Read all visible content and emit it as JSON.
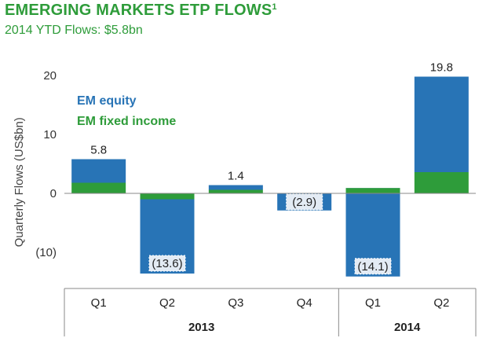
{
  "header": {
    "title": "EMERGING MARKETS ETP FLOWS",
    "title_footnote": "1",
    "subtitle": "2014 YTD Flows: $5.8bn"
  },
  "colors": {
    "em_equity": "#2874b6",
    "em_fixed_income": "#2e9c3a",
    "label_box": "#e3ebf4",
    "title": "#2e9c3a",
    "axis": "#888888"
  },
  "chart_data": {
    "type": "bar",
    "stacked": true,
    "categories": [
      "Q1",
      "Q2",
      "Q3",
      "Q4",
      "Q1",
      "Q2"
    ],
    "year_groups": [
      {
        "label": "2013",
        "categories": [
          0,
          1,
          2,
          3
        ]
      },
      {
        "label": "2014",
        "categories": [
          4,
          5
        ]
      }
    ],
    "series": [
      {
        "name": "EM equity",
        "values": [
          4.0,
          -12.6,
          0.8,
          -2.9,
          -15.0,
          16.2
        ]
      },
      {
        "name": "EM fixed income",
        "values": [
          1.8,
          -1.0,
          0.6,
          0.0,
          0.9,
          3.6
        ]
      }
    ],
    "totals": [
      5.8,
      -13.6,
      1.4,
      -2.9,
      -14.1,
      19.8
    ],
    "total_labels": [
      "5.8",
      "(13.6)",
      "1.4",
      "(2.9)",
      "(14.1)",
      "19.8"
    ],
    "ylabel": "Quarterly Flows (US$bn)",
    "yticks": [
      20,
      10,
      0,
      -10
    ],
    "ytick_labels": [
      "20",
      "10",
      "0",
      "(10)"
    ],
    "ylim": [
      -16.5,
      21.5
    ],
    "legend_position": "top-left",
    "grid": false
  }
}
